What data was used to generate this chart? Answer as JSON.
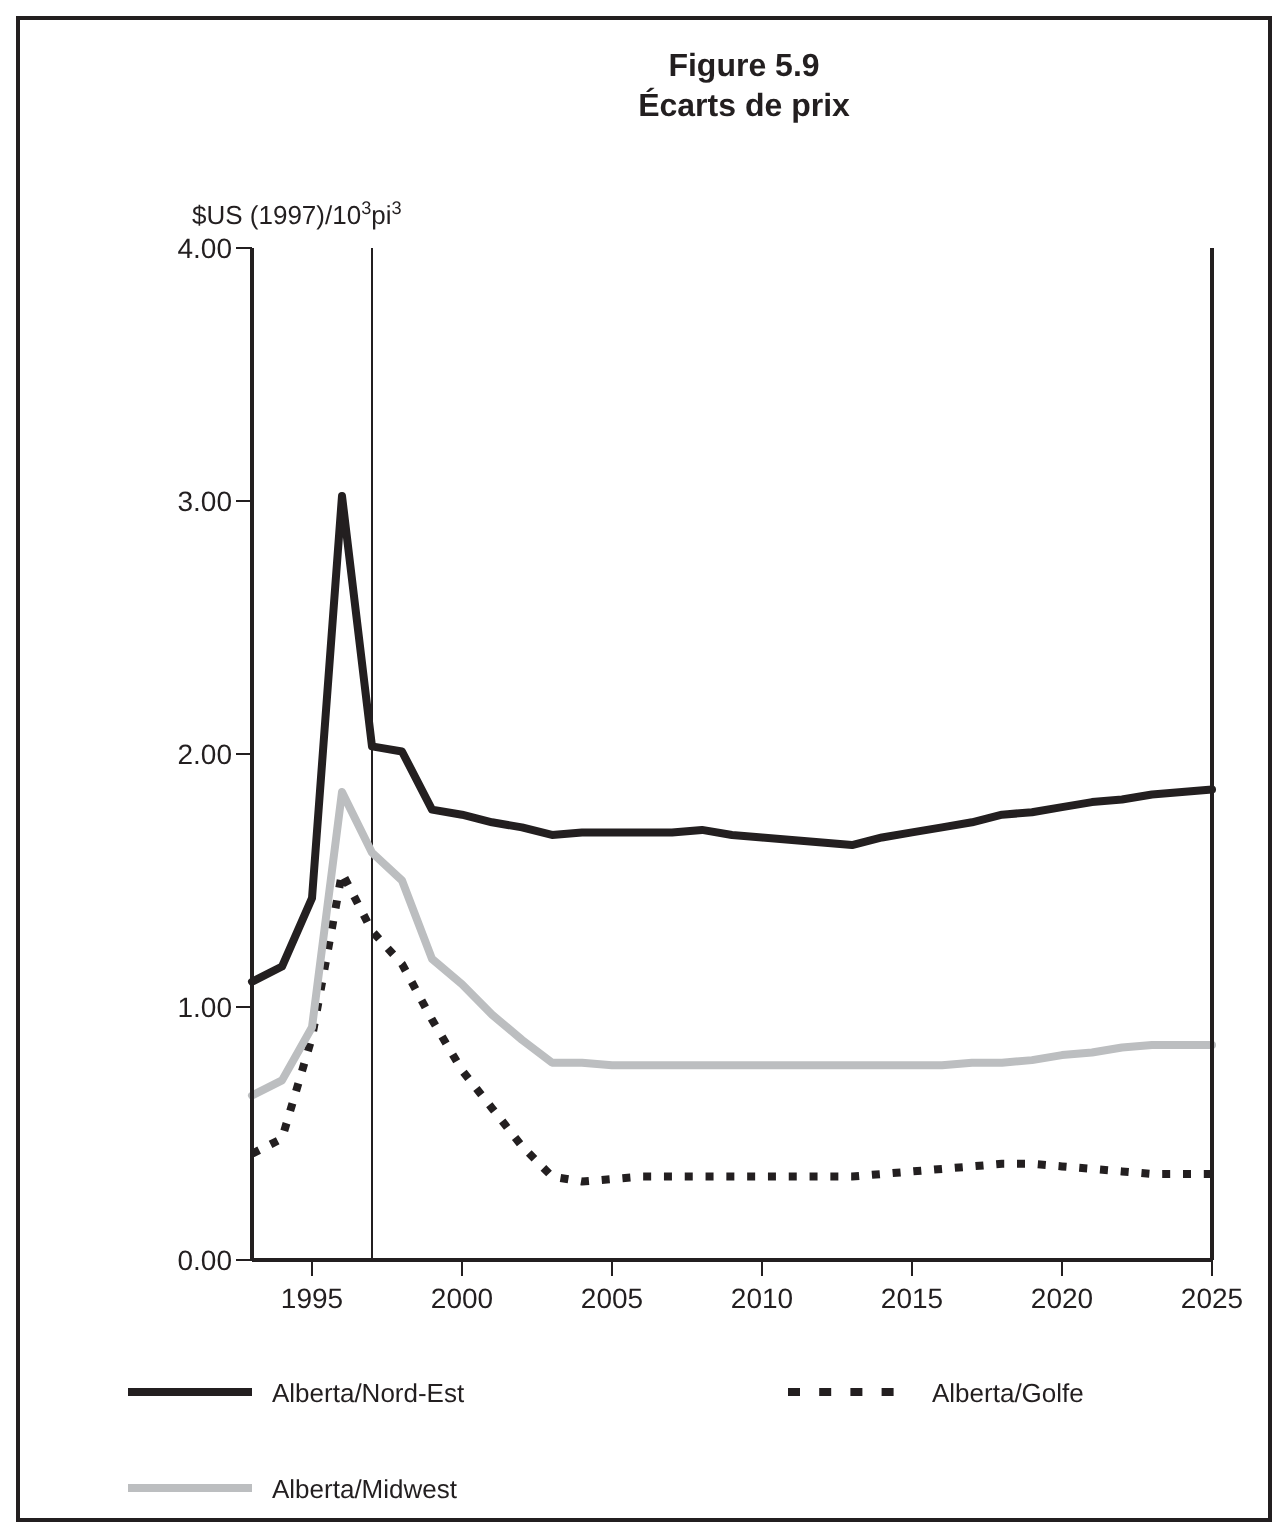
{
  "chart_data": {
    "type": "line",
    "title": "Figure 5.9",
    "subtitle": "Écarts de prix",
    "ylabel": "$US (1997)/10$^{3}$pi$^{3}$",
    "x": [
      1993,
      1994,
      1995,
      1996,
      1997,
      1998,
      1999,
      2000,
      2001,
      2002,
      2003,
      2004,
      2005,
      2006,
      2007,
      2008,
      2009,
      2010,
      2011,
      2012,
      2013,
      2014,
      2015,
      2016,
      2017,
      2018,
      2019,
      2020,
      2021,
      2022,
      2023,
      2024,
      2025
    ],
    "series": [
      {
        "name": "Alberta/Nord-Est",
        "color": "#231f20",
        "line_style": "solid",
        "values": [
          1.1,
          1.16,
          1.43,
          3.02,
          2.03,
          2.01,
          1.78,
          1.76,
          1.73,
          1.71,
          1.68,
          1.69,
          1.69,
          1.69,
          1.69,
          1.7,
          1.68,
          1.67,
          1.66,
          1.65,
          1.64,
          1.67,
          1.69,
          1.71,
          1.73,
          1.76,
          1.77,
          1.79,
          1.81,
          1.82,
          1.84,
          1.85,
          1.86
        ]
      },
      {
        "name": "Alberta/Golfe",
        "color": "#231f20",
        "line_style": "dotted",
        "values": [
          0.42,
          0.48,
          0.88,
          1.53,
          1.3,
          1.17,
          0.95,
          0.75,
          0.6,
          0.45,
          0.33,
          0.31,
          0.32,
          0.33,
          0.33,
          0.33,
          0.33,
          0.33,
          0.33,
          0.33,
          0.33,
          0.34,
          0.35,
          0.36,
          0.37,
          0.38,
          0.38,
          0.37,
          0.36,
          0.35,
          0.34,
          0.34,
          0.34
        ]
      },
      {
        "name": "Alberta/Midwest",
        "color": "#bcbec0",
        "line_style": "solid",
        "values": [
          0.65,
          0.71,
          0.92,
          1.85,
          1.61,
          1.5,
          1.19,
          1.09,
          0.97,
          0.87,
          0.78,
          0.78,
          0.77,
          0.77,
          0.77,
          0.77,
          0.77,
          0.77,
          0.77,
          0.77,
          0.77,
          0.77,
          0.77,
          0.77,
          0.78,
          0.78,
          0.79,
          0.81,
          0.82,
          0.84,
          0.85,
          0.85,
          0.85
        ]
      }
    ],
    "xlim": [
      1993,
      2025
    ],
    "xticks": [
      1995,
      2000,
      2005,
      2010,
      2015,
      2020,
      2025
    ],
    "ylim": [
      0,
      4
    ],
    "yticks": [
      {
        "value": 0,
        "label": "0.00"
      },
      {
        "value": 1,
        "label": "1.00"
      },
      {
        "value": 2,
        "label": "2.00"
      },
      {
        "value": 3,
        "label": "3.00"
      },
      {
        "value": 4,
        "label": "4.00"
      }
    ],
    "ref_lines": [
      {
        "axis": "x",
        "value": 1997,
        "color": "#231f20",
        "line_style": "solid"
      }
    ],
    "grid": false,
    "legend": "bottom",
    "marker": "none"
  }
}
